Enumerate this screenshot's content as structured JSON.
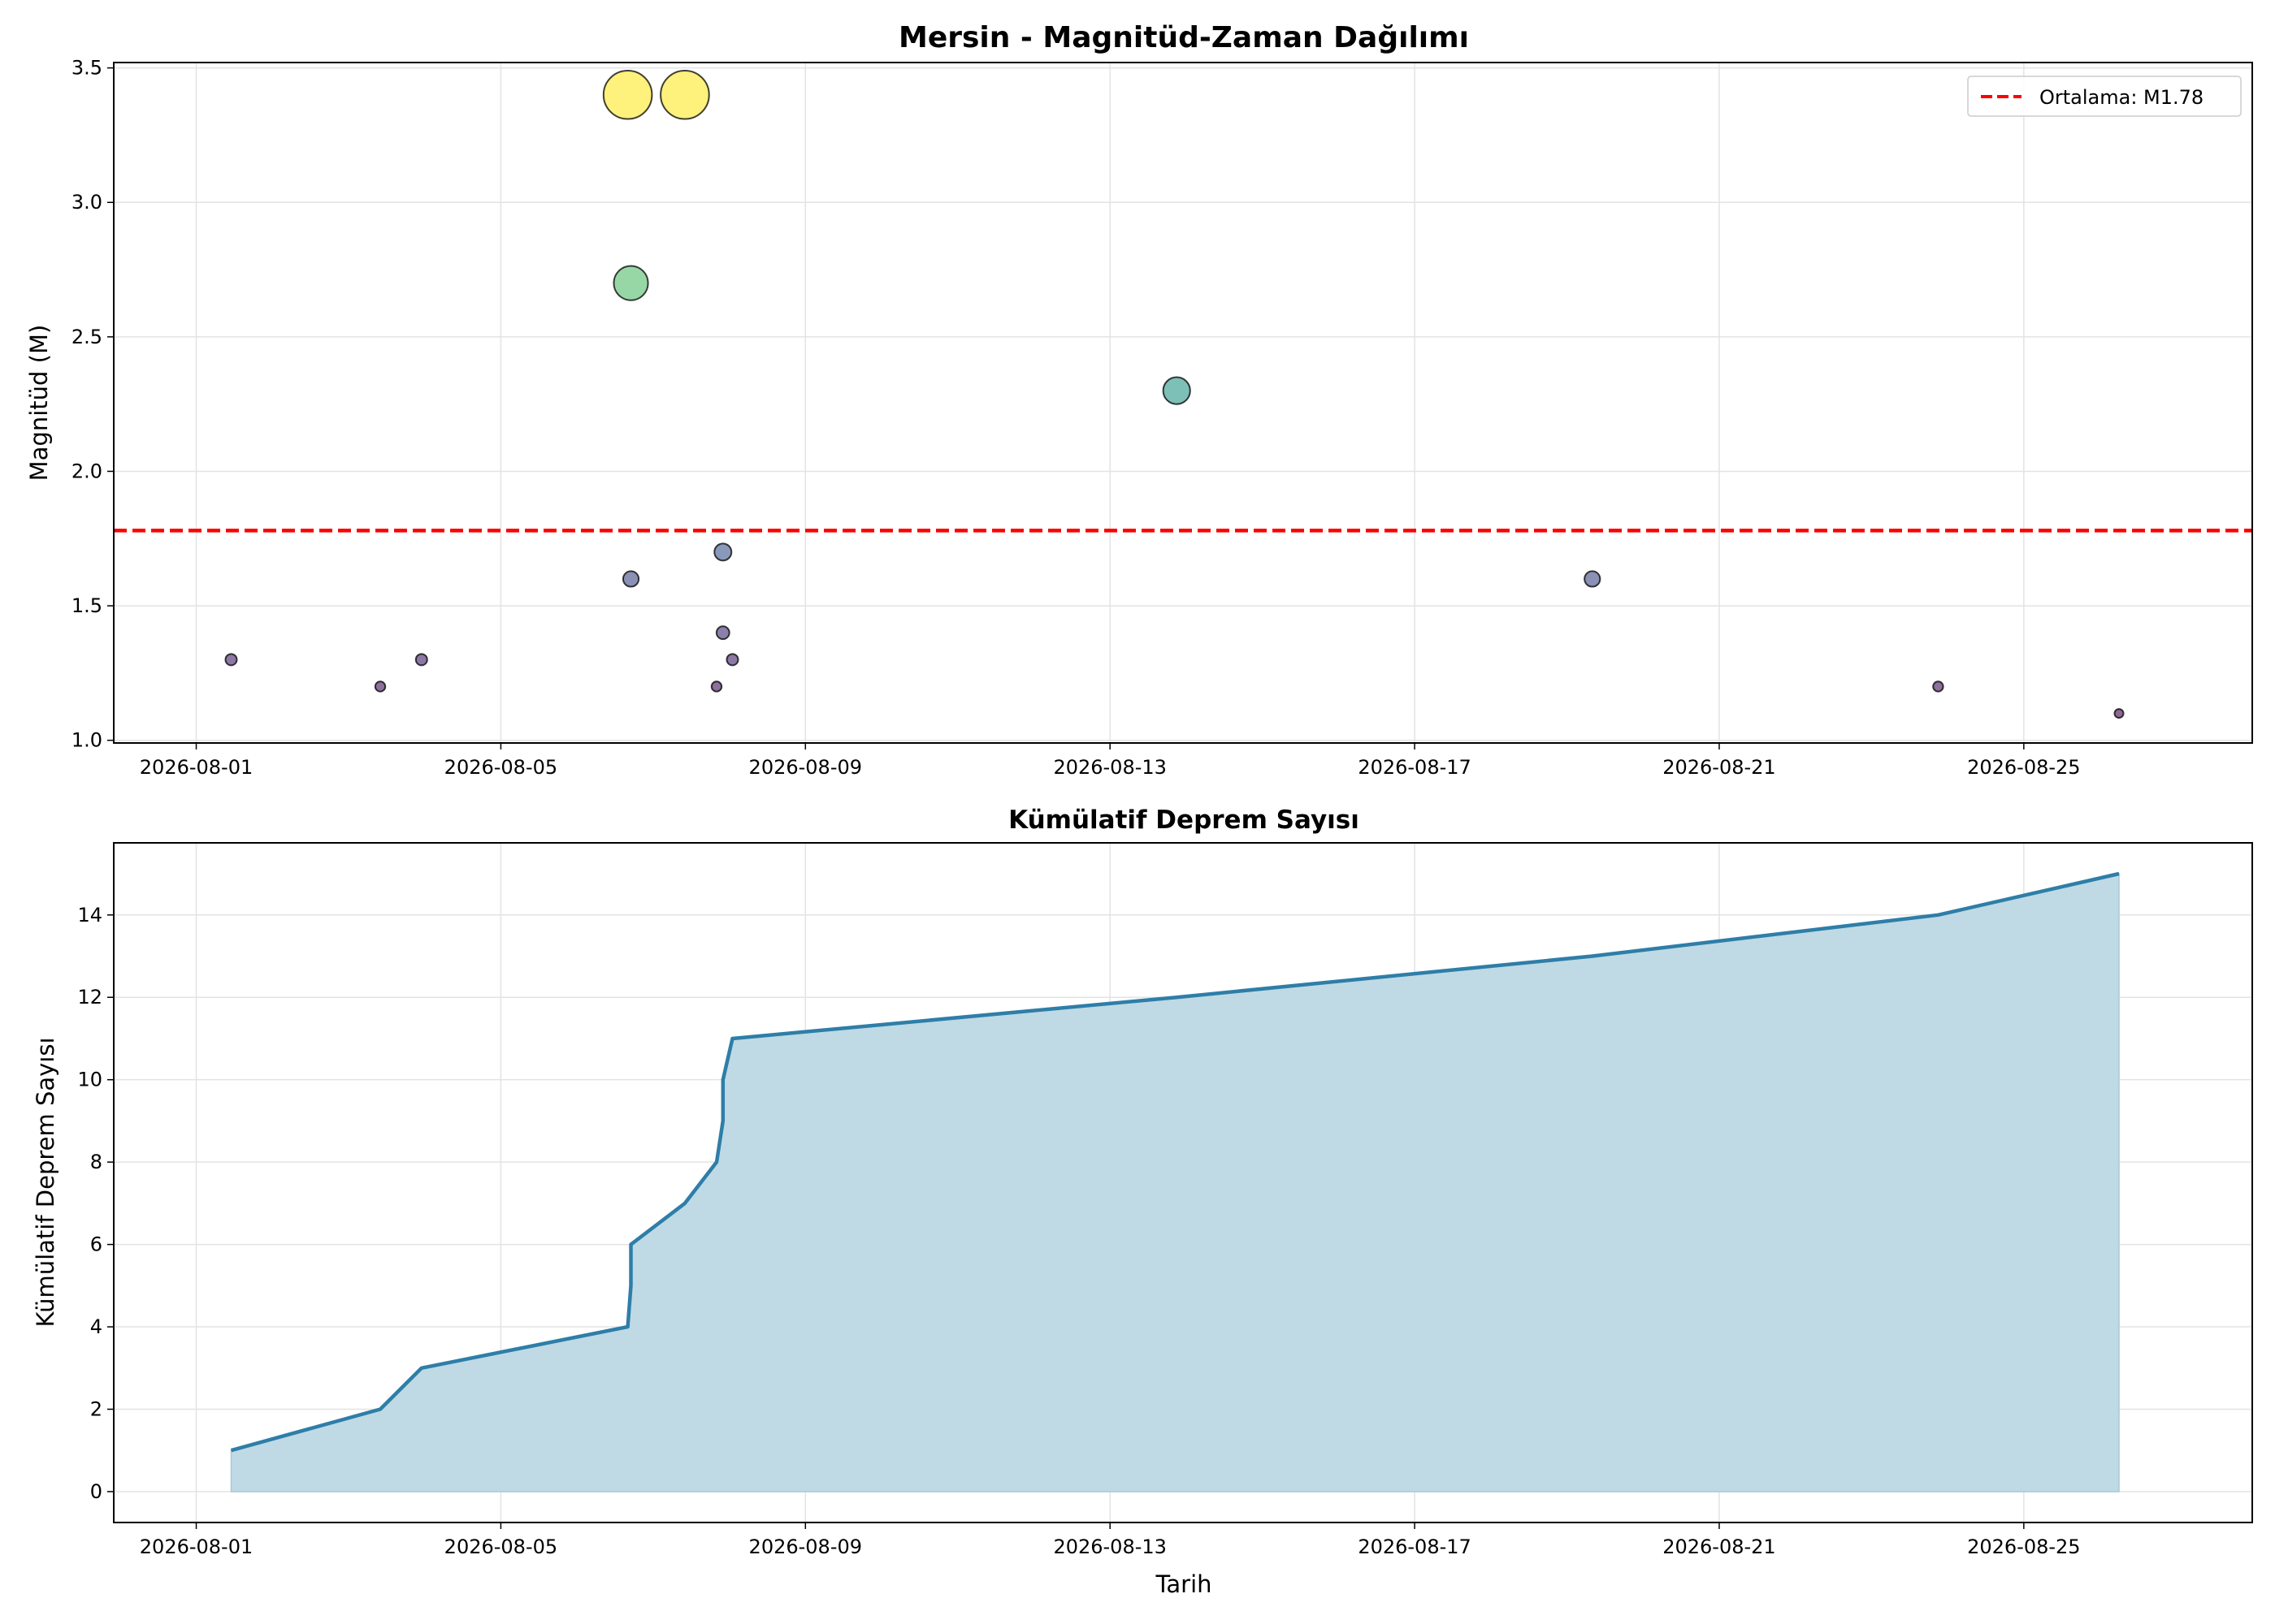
{
  "chart_data": [
    {
      "type": "scatter",
      "title": "Mersin - Magnitüd-Zaman Dağılımı",
      "xlabel": "",
      "ylabel": "Magnitüd (M)",
      "xlim": [
        "2026-07-30 22:00",
        "2026-08-28 00:00"
      ],
      "ylim": [
        0.99,
        3.52
      ],
      "x_ticks": [
        "2026-08-01",
        "2026-08-05",
        "2026-08-09",
        "2026-08-13",
        "2026-08-17",
        "2026-08-21",
        "2026-08-25"
      ],
      "y_ticks": [
        1.0,
        1.5,
        2.0,
        2.5,
        3.0,
        3.5
      ],
      "y_tick_labels": [
        "1.0",
        "1.5",
        "2.0",
        "2.5",
        "3.0",
        "3.5"
      ],
      "grid": true,
      "legend_position": "top-right",
      "colormap": "viridis",
      "marker_size_encodes": "magnitude",
      "points": [
        {
          "x": "2026-08-01 11:00",
          "y": 1.3
        },
        {
          "x": "2026-08-03 10:00",
          "y": 1.2
        },
        {
          "x": "2026-08-03 23:00",
          "y": 1.3
        },
        {
          "x": "2026-08-06 16:00",
          "y": 3.4
        },
        {
          "x": "2026-08-06 17:00",
          "y": 2.7
        },
        {
          "x": "2026-08-06 17:00",
          "y": 1.6
        },
        {
          "x": "2026-08-07 10:00",
          "y": 3.4
        },
        {
          "x": "2026-08-07 20:00",
          "y": 1.2
        },
        {
          "x": "2026-08-07 22:00",
          "y": 1.4
        },
        {
          "x": "2026-08-07 22:00",
          "y": 1.7
        },
        {
          "x": "2026-08-08 01:00",
          "y": 1.3
        },
        {
          "x": "2026-08-13 21:00",
          "y": 2.3
        },
        {
          "x": "2026-08-19 08:00",
          "y": 1.6
        },
        {
          "x": "2026-08-23 21:00",
          "y": 1.2
        },
        {
          "x": "2026-08-26 06:00",
          "y": 1.1
        }
      ],
      "reference_line": {
        "y": 1.78,
        "label": "Ortalama: M1.78",
        "color": "#ff0000",
        "style": "dashed"
      }
    },
    {
      "type": "area",
      "title": "Kümülatif Deprem Sayısı",
      "xlabel": "Tarih",
      "ylabel": "Kümülatif Deprem Sayısı",
      "xlim": [
        "2026-07-30 22:00",
        "2026-08-28 00:00"
      ],
      "ylim": [
        -0.75,
        15.75
      ],
      "x_ticks": [
        "2026-08-01",
        "2026-08-05",
        "2026-08-09",
        "2026-08-13",
        "2026-08-17",
        "2026-08-21",
        "2026-08-25"
      ],
      "y_ticks": [
        0,
        2,
        4,
        6,
        8,
        10,
        12,
        14
      ],
      "grid": true,
      "line_color": "#2e7ea8",
      "fill_color": "#bfdae4",
      "points": [
        {
          "x": "2026-08-01 11:00",
          "y": 1
        },
        {
          "x": "2026-08-03 10:00",
          "y": 2
        },
        {
          "x": "2026-08-03 23:00",
          "y": 3
        },
        {
          "x": "2026-08-06 16:00",
          "y": 4
        },
        {
          "x": "2026-08-06 17:00",
          "y": 5
        },
        {
          "x": "2026-08-06 17:00",
          "y": 6
        },
        {
          "x": "2026-08-07 10:00",
          "y": 7
        },
        {
          "x": "2026-08-07 20:00",
          "y": 8
        },
        {
          "x": "2026-08-07 22:00",
          "y": 9
        },
        {
          "x": "2026-08-07 22:00",
          "y": 10
        },
        {
          "x": "2026-08-08 01:00",
          "y": 11
        },
        {
          "x": "2026-08-13 21:00",
          "y": 12
        },
        {
          "x": "2026-08-19 08:00",
          "y": 13
        },
        {
          "x": "2026-08-23 21:00",
          "y": 14
        },
        {
          "x": "2026-08-26 06:00",
          "y": 15
        }
      ]
    }
  ]
}
